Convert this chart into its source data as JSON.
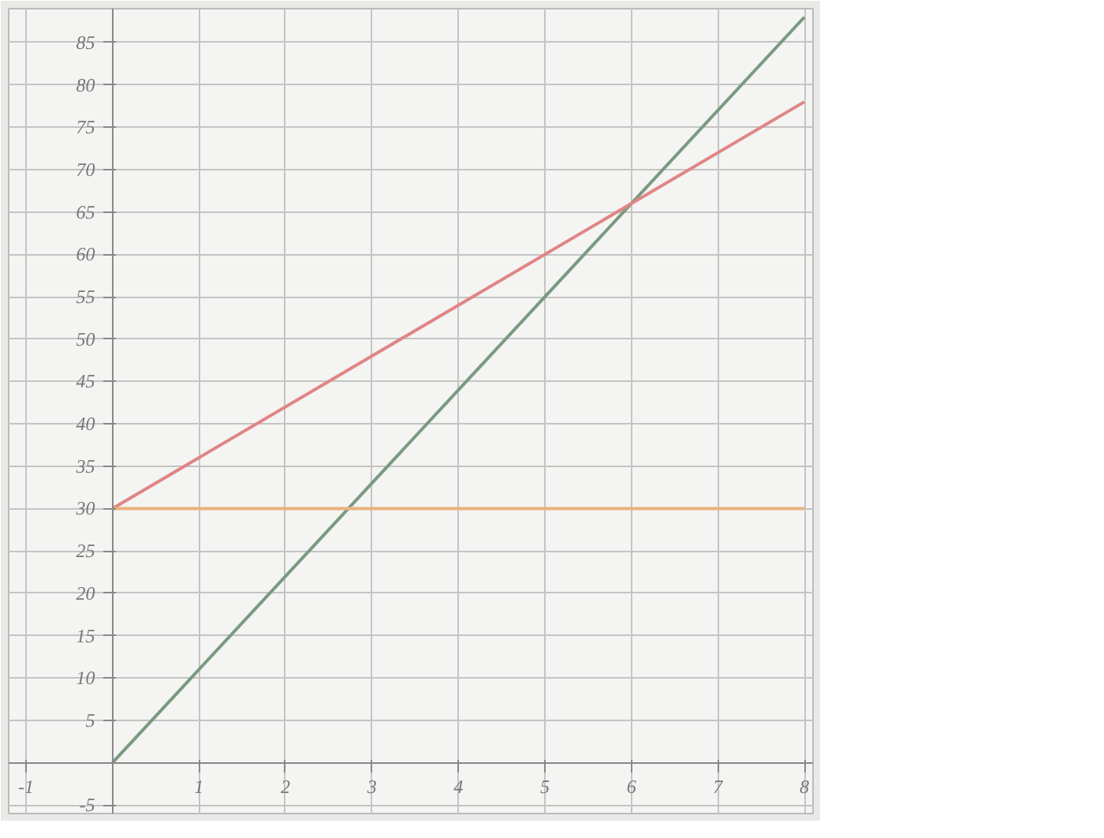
{
  "chart_data": {
    "type": "line",
    "x": [
      0,
      8
    ],
    "series": [
      {
        "color": "#7a9a80",
        "values": [
          0,
          88
        ]
      },
      {
        "color": "#e08585",
        "values": [
          30,
          78
        ]
      },
      {
        "color": "#e8b27e",
        "values": [
          30,
          30
        ]
      }
    ],
    "xlim": [
      -1.2,
      8.1
    ],
    "ylim": [
      -6,
      89
    ],
    "xticks": [
      -1,
      1,
      2,
      3,
      4,
      5,
      6,
      7,
      8
    ],
    "yticks": [
      -5,
      {
        "value": 0,
        "label": null
      },
      5,
      10,
      15,
      20,
      25,
      30,
      35,
      40,
      45,
      50,
      55,
      60,
      65,
      70,
      75,
      80,
      85
    ],
    "grid": true,
    "line_style": "solid",
    "marker": "none"
  }
}
